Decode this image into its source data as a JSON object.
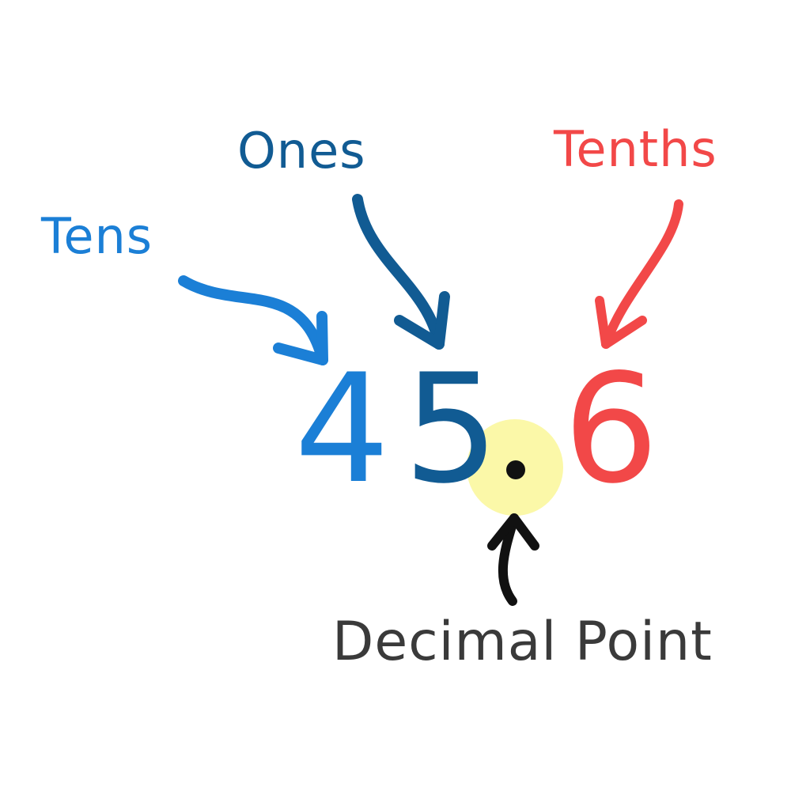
{
  "labels": {
    "tens": "Tens",
    "ones": "Ones",
    "tenths": "Tenths",
    "decimal_point": "Decimal Point"
  },
  "number": {
    "tens_digit": "4",
    "ones_digit": "5",
    "tenths_digit": "6"
  },
  "colors": {
    "tens": "#1b7fd6",
    "ones": "#115b93",
    "tenths": "#f24848",
    "decimal_label": "#3a3a3a",
    "highlight": "#fbf8a8",
    "point": "#111111"
  },
  "icons": {
    "tens_arrow": "curved-arrow-icon",
    "ones_arrow": "curved-arrow-icon",
    "tenths_arrow": "curved-arrow-icon",
    "decimal_arrow": "curved-arrow-icon"
  }
}
